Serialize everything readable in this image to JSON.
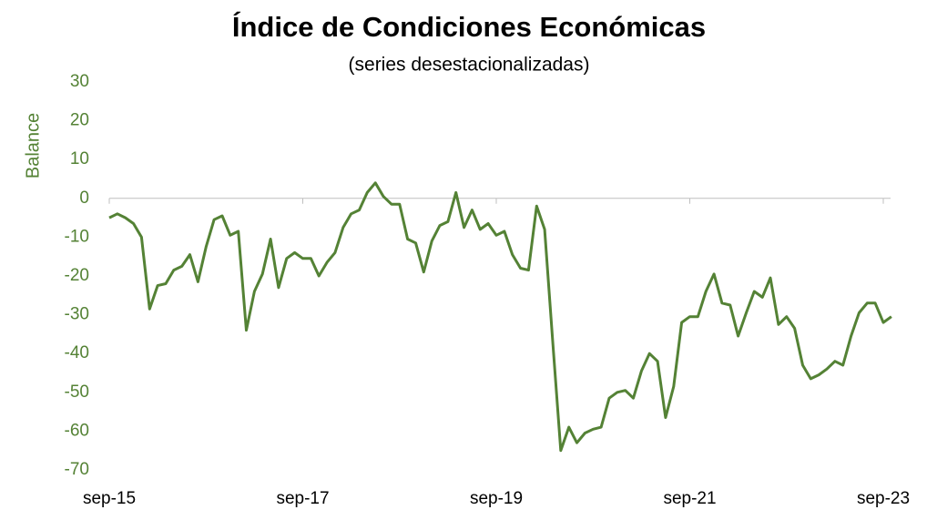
{
  "chart_data": {
    "type": "line",
    "title": "Índice de Condiciones Económicas",
    "subtitle": "(series desestacionalizadas)",
    "y_label": "Balance",
    "categories": [
      "sep-15",
      null,
      null,
      null,
      null,
      null,
      null,
      null,
      null,
      null,
      null,
      null,
      null,
      null,
      null,
      null,
      null,
      null,
      null,
      null,
      null,
      null,
      null,
      null,
      "sep-17",
      null,
      null,
      null,
      null,
      null,
      null,
      null,
      null,
      null,
      null,
      null,
      null,
      null,
      null,
      null,
      null,
      null,
      null,
      null,
      null,
      null,
      null,
      null,
      "sep-19",
      null,
      null,
      null,
      null,
      null,
      null,
      null,
      null,
      null,
      null,
      null,
      null,
      null,
      null,
      null,
      null,
      null,
      null,
      null,
      null,
      null,
      null,
      null,
      "sep-21",
      null,
      null,
      null,
      null,
      null,
      null,
      null,
      null,
      null,
      null,
      null,
      null,
      null,
      null,
      null,
      null,
      null,
      null,
      null,
      null,
      null,
      null,
      null,
      "sep-23",
      null
    ],
    "series": [
      {
        "name": "Índice de Condiciones Económicas",
        "color": "#548235",
        "values": [
          -5,
          -4,
          -5,
          -6.5,
          -10,
          -28.5,
          -22.5,
          -22,
          -18.5,
          -17.5,
          -14.5,
          -21.5,
          -12.5,
          -5.5,
          -4.5,
          -9.5,
          -8.5,
          -34,
          -24,
          -19.5,
          -10.5,
          -23,
          -15.5,
          -14,
          -15.5,
          -15.5,
          -20,
          -16.5,
          -14,
          -7.5,
          -4,
          -3,
          1.5,
          4,
          0.5,
          -1.5,
          -1.5,
          -10.5,
          -11.5,
          -19,
          -11,
          -7,
          -6,
          1.5,
          -7.5,
          -3,
          -8,
          -6.5,
          -9.5,
          -8.5,
          -14.5,
          -18,
          -18.5,
          -2,
          -8,
          -37,
          -65,
          -59,
          -63,
          -60.5,
          -59.5,
          -59,
          -51.5,
          -50,
          -49.5,
          -51.5,
          -44.5,
          -40,
          -42,
          -56.5,
          -48.5,
          -32,
          -30.5,
          -30.5,
          -24,
          -19.5,
          -27,
          -27.5,
          -35.5,
          -29.5,
          -24,
          -25.5,
          -20.5,
          -32.5,
          -30.5,
          -33.5,
          -43,
          -46.5,
          -45.5,
          -44,
          -42,
          -43,
          -35.5,
          -29.5,
          -27,
          -27,
          -32,
          -30.5
        ]
      }
    ],
    "ylim": [
      -70,
      30
    ],
    "yticks": [
      -70,
      -60,
      -50,
      -40,
      -30,
      -20,
      -10,
      0,
      10,
      20,
      30
    ],
    "grid": false
  }
}
